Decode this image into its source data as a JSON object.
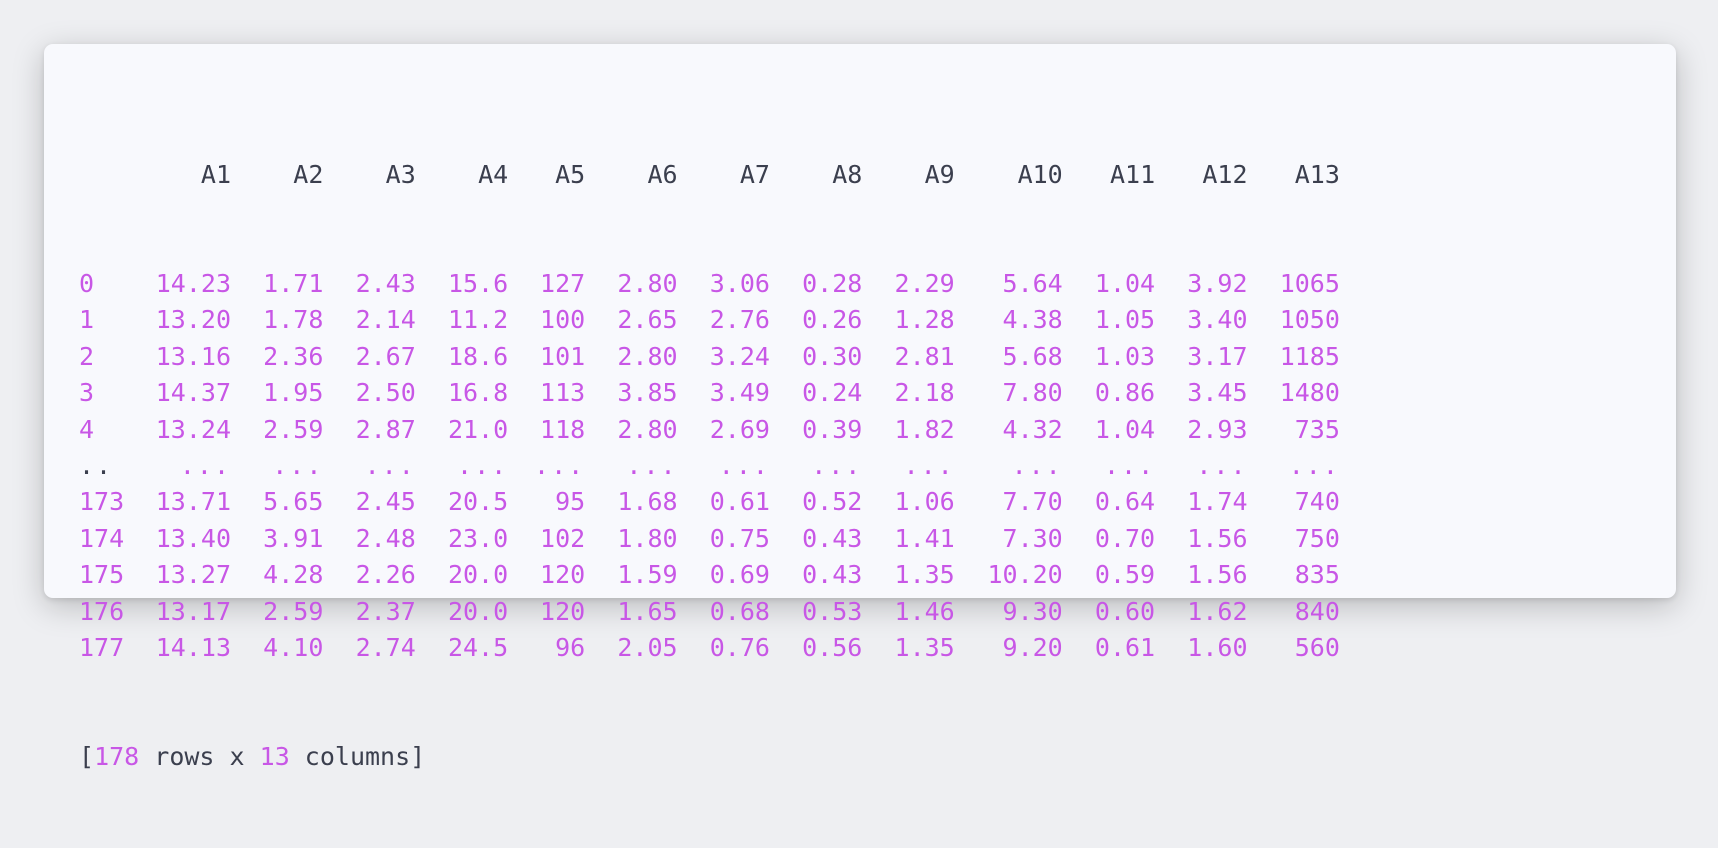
{
  "columns": [
    "A1",
    "A2",
    "A3",
    "A4",
    "A5",
    "A6",
    "A7",
    "A8",
    "A9",
    "A10",
    "A11",
    "A12",
    "A13"
  ],
  "rows": [
    {
      "index": "0",
      "values": [
        "14.23",
        "1.71",
        "2.43",
        "15.6",
        "127",
        "2.80",
        "3.06",
        "0.28",
        "2.29",
        "5.64",
        "1.04",
        "3.92",
        "1065"
      ]
    },
    {
      "index": "1",
      "values": [
        "13.20",
        "1.78",
        "2.14",
        "11.2",
        "100",
        "2.65",
        "2.76",
        "0.26",
        "1.28",
        "4.38",
        "1.05",
        "3.40",
        "1050"
      ]
    },
    {
      "index": "2",
      "values": [
        "13.16",
        "2.36",
        "2.67",
        "18.6",
        "101",
        "2.80",
        "3.24",
        "0.30",
        "2.81",
        "5.68",
        "1.03",
        "3.17",
        "1185"
      ]
    },
    {
      "index": "3",
      "values": [
        "14.37",
        "1.95",
        "2.50",
        "16.8",
        "113",
        "3.85",
        "3.49",
        "0.24",
        "2.18",
        "7.80",
        "0.86",
        "3.45",
        "1480"
      ]
    },
    {
      "index": "4",
      "values": [
        "13.24",
        "2.59",
        "2.87",
        "21.0",
        "118",
        "2.80",
        "2.69",
        "0.39",
        "1.82",
        "4.32",
        "1.04",
        "2.93",
        "735"
      ]
    },
    {
      "index": "..",
      "values": [
        "...",
        "...",
        "...",
        "...",
        "...",
        "...",
        "...",
        "...",
        "...",
        "...",
        "...",
        "...",
        "..."
      ]
    },
    {
      "index": "173",
      "values": [
        "13.71",
        "5.65",
        "2.45",
        "20.5",
        "95",
        "1.68",
        "0.61",
        "0.52",
        "1.06",
        "7.70",
        "0.64",
        "1.74",
        "740"
      ]
    },
    {
      "index": "174",
      "values": [
        "13.40",
        "3.91",
        "2.48",
        "23.0",
        "102",
        "1.80",
        "0.75",
        "0.43",
        "1.41",
        "7.30",
        "0.70",
        "1.56",
        "750"
      ]
    },
    {
      "index": "175",
      "values": [
        "13.27",
        "4.28",
        "2.26",
        "20.0",
        "120",
        "1.59",
        "0.69",
        "0.43",
        "1.35",
        "10.20",
        "0.59",
        "1.56",
        "835"
      ]
    },
    {
      "index": "176",
      "values": [
        "13.17",
        "2.59",
        "2.37",
        "20.0",
        "120",
        "1.65",
        "0.68",
        "0.53",
        "1.46",
        "9.30",
        "0.60",
        "1.62",
        "840"
      ]
    },
    {
      "index": "177",
      "values": [
        "14.13",
        "4.10",
        "2.74",
        "24.5",
        "96",
        "2.05",
        "0.76",
        "0.56",
        "1.35",
        "9.20",
        "0.61",
        "1.60",
        "560"
      ]
    }
  ],
  "footer": {
    "open": "[",
    "rows_count": "178",
    "rows_word": " rows x ",
    "cols_count": "13",
    "cols_word": " columns]"
  },
  "colors": {
    "text": "#3b3f4e",
    "value": "#c857e6",
    "card_bg": "#f8f9fd",
    "page_bg": "#eeeff2"
  }
}
